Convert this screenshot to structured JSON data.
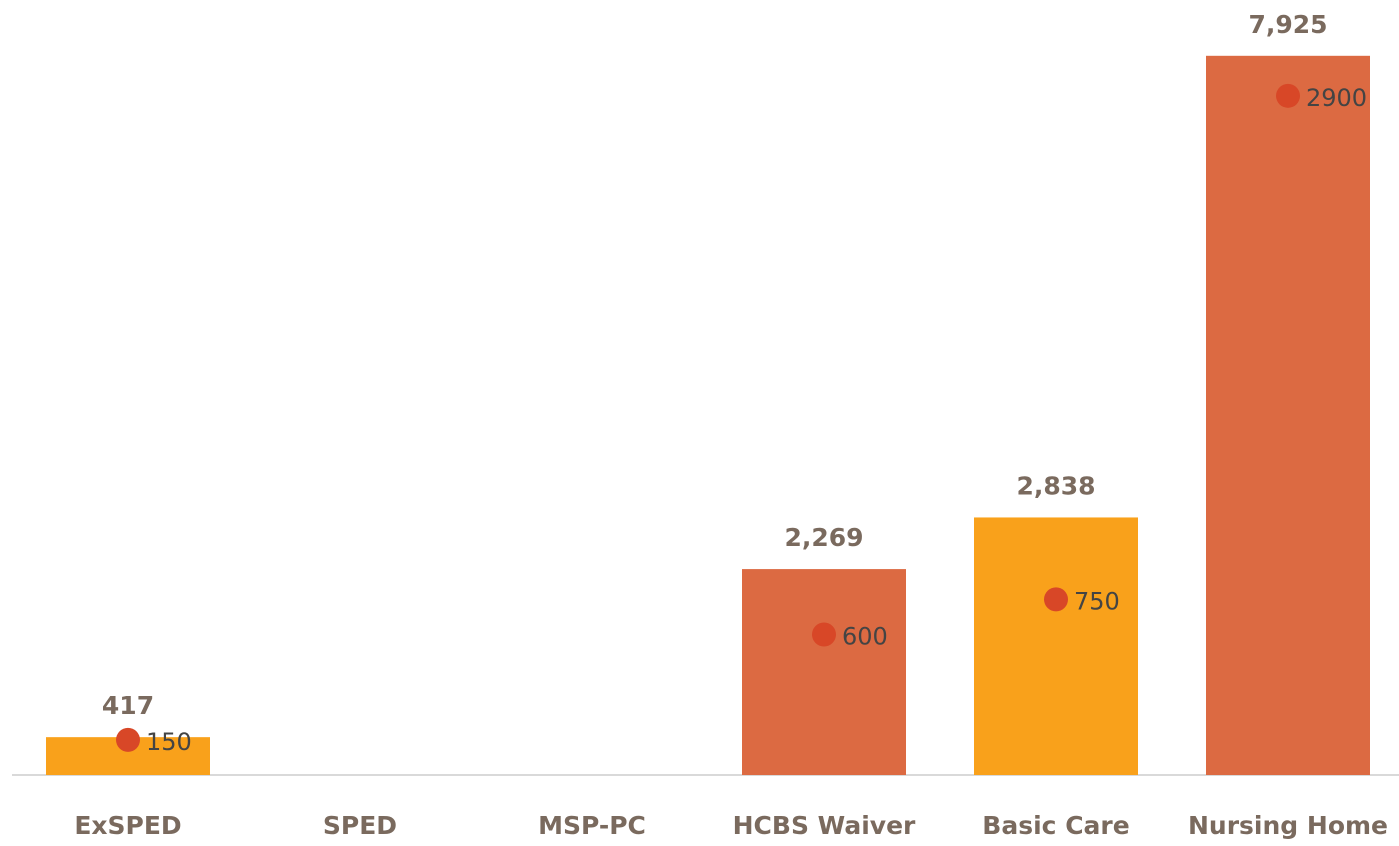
{
  "chart_data": {
    "type": "bar",
    "categories": [
      "ExSPED",
      "SPED",
      "MSP-PC",
      "HCBS Waiver",
      "Basic Care",
      "Nursing Home"
    ],
    "series": [
      {
        "values": [
          417,
          null,
          null,
          2269,
          2838,
          7925
        ],
        "value_labels": [
          "417",
          null,
          null,
          "2,269",
          "2,838",
          "7,925"
        ],
        "colors": [
          "#f9a11b",
          null,
          null,
          "#dc6a42",
          "#f9a11b",
          "#dc6a42"
        ]
      },
      {
        "type": "scatter",
        "axis": "y2",
        "color": "#d84727",
        "values": [
          150,
          null,
          null,
          600,
          750,
          2900
        ]
      }
    ],
    "ylim": [
      0,
      8000
    ],
    "y2lim": [
      0,
      3100
    ],
    "grid": false
  }
}
